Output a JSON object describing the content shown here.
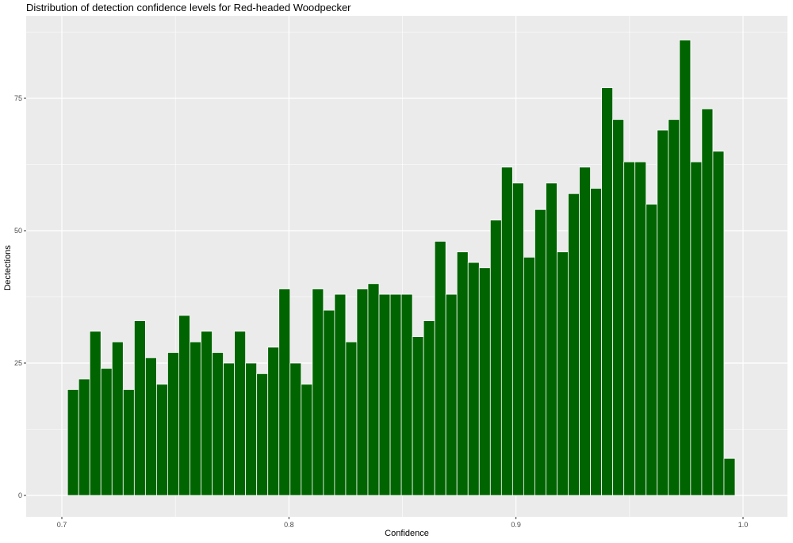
{
  "chart_data": {
    "type": "bar",
    "title": "Distribution of detection confidence levels for Red-headed Woodpecker",
    "xlabel": "Confidence",
    "ylabel": "Dectections",
    "xlim": [
      0.7,
      1.0
    ],
    "ylim": [
      0,
      87
    ],
    "x_ticks": [
      0.7,
      0.8,
      0.9,
      1.0
    ],
    "x_tick_labels": [
      "0.7",
      "0.8",
      "0.9",
      "1.0"
    ],
    "y_ticks": [
      0,
      25,
      50,
      75
    ],
    "y_tick_labels": [
      "0",
      "25",
      "50",
      "75"
    ],
    "bin_width": 0.0049,
    "bin_start": 0.7025,
    "values": [
      20,
      22,
      31,
      24,
      29,
      20,
      33,
      26,
      21,
      27,
      34,
      29,
      31,
      27,
      25,
      31,
      25,
      23,
      28,
      39,
      25,
      21,
      39,
      35,
      38,
      29,
      39,
      40,
      38,
      38,
      38,
      30,
      33,
      48,
      38,
      46,
      44,
      43,
      52,
      62,
      59,
      45,
      54,
      59,
      46,
      57,
      62,
      58,
      77,
      71,
      63,
      63,
      55,
      69,
      71,
      86,
      63,
      73,
      65,
      7
    ],
    "bar_color": "#006400",
    "bar_edge_color": "#ffffff",
    "panel_color": "#ebebeb",
    "grid": true,
    "legend": "none"
  }
}
